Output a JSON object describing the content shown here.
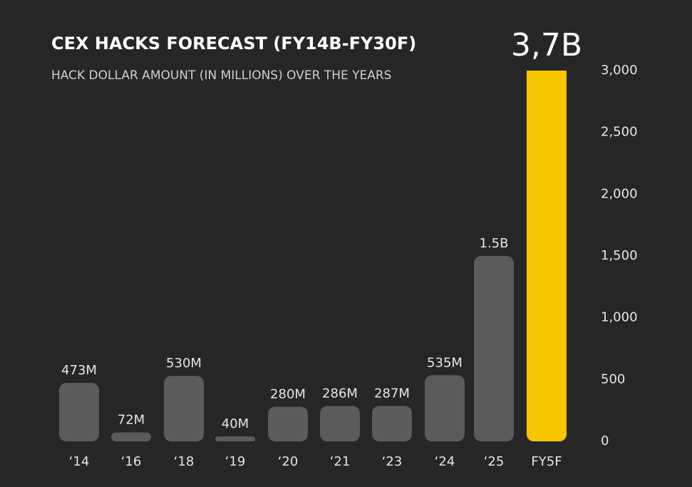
{
  "chart_data": {
    "type": "bar",
    "title": "CEX HACKS FORECAST (FY14B-FY30F)",
    "subtitle": "HACK DOLLAR AMOUNT (IN MILLIONS) OVER THE YEARS",
    "categories": [
      "‘14",
      "‘16",
      "‘18",
      "‘19",
      "‘20",
      "‘21",
      "‘23",
      "‘24",
      "‘25",
      "FY5F"
    ],
    "values": [
      473,
      72,
      530,
      40,
      280,
      286,
      287,
      535,
      1500,
      3700
    ],
    "value_labels": [
      "473M",
      "72M",
      "530M",
      "40M",
      "280M",
      "286M",
      "287M",
      "535M",
      "1.5B",
      "3,7B"
    ],
    "colors": [
      "#5b5b5b",
      "#5b5b5b",
      "#5b5b5b",
      "#5b5b5b",
      "#5b5b5b",
      "#5b5b5b",
      "#5b5b5b",
      "#5b5b5b",
      "#5b5b5b",
      "#f7c600"
    ],
    "ylim": [
      0,
      3000
    ],
    "yticks": [
      0,
      500,
      {
        "value": 1000,
        "label": "1,000"
      },
      {
        "value": 1500,
        "label": "1,500"
      },
      {
        "value": 2000,
        "label": "2,000"
      },
      {
        "value": 2500,
        "label": "2,500"
      },
      {
        "value": 3000,
        "label": "3,000"
      }
    ],
    "grid": false
  }
}
